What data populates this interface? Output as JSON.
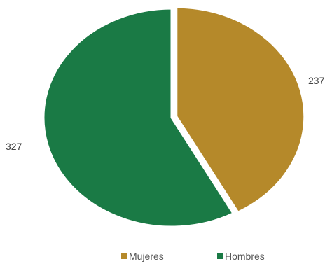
{
  "chart_data": {
    "type": "pie",
    "categories": [
      "Mujeres",
      "Hombres"
    ],
    "values": [
      237,
      327
    ],
    "colors": [
      "#b5892a",
      "#1a7a45"
    ],
    "start_angle_deg": 0,
    "direction": "clockwise",
    "data_labels": [
      "237",
      "327"
    ],
    "legend": {
      "position": "bottom",
      "entries": [
        "Mujeres",
        "Hombres"
      ]
    },
    "title": ""
  }
}
